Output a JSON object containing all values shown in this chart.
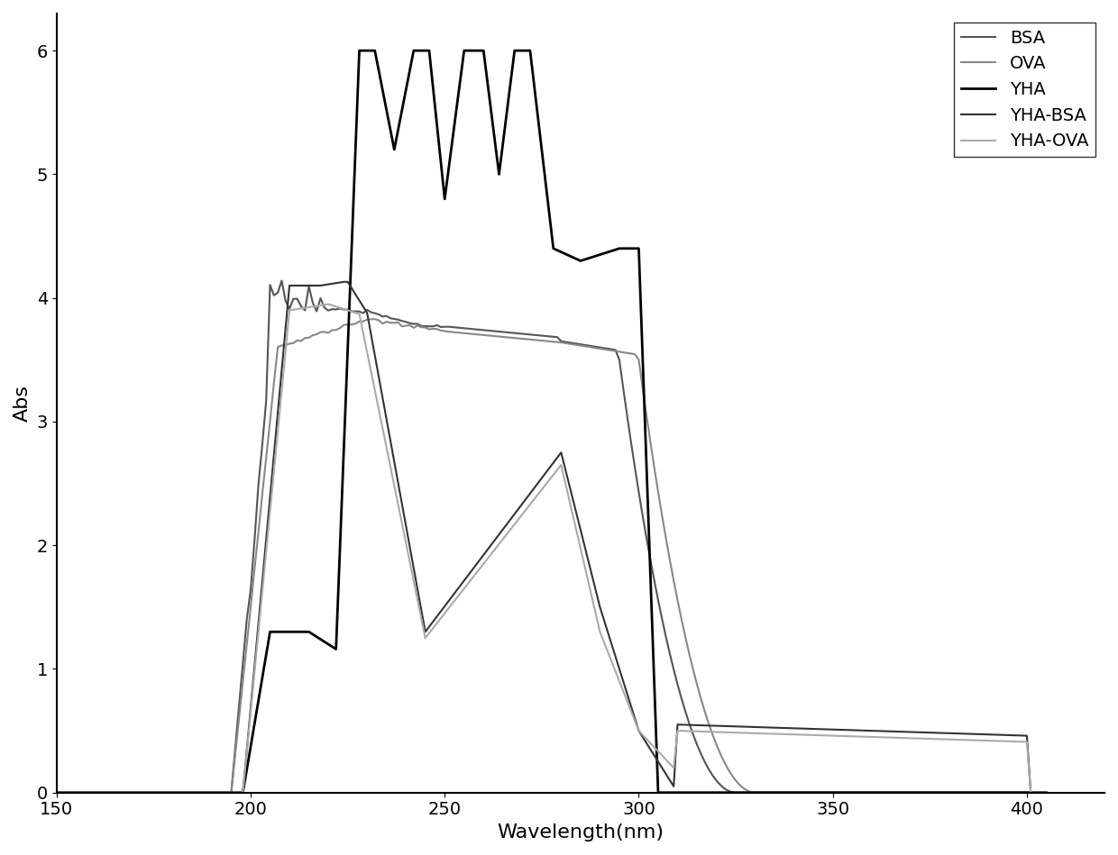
{
  "xlim": [
    150,
    420
  ],
  "ylim": [
    0,
    6.3
  ],
  "xlabel": "Wavelength(nm)",
  "ylabel": "Abs",
  "legend_labels": [
    "BSA",
    "OVA",
    "YHA",
    "YHA-BSA",
    "YHA-OVA"
  ],
  "line_colors": [
    "#555555",
    "#888888",
    "#000000",
    "#333333",
    "#aaaaaa"
  ],
  "line_widths": [
    1.5,
    1.5,
    2.0,
    1.5,
    1.5
  ],
  "background_color": "#ffffff",
  "tick_fontsize": 14,
  "label_fontsize": 16,
  "legend_fontsize": 14
}
